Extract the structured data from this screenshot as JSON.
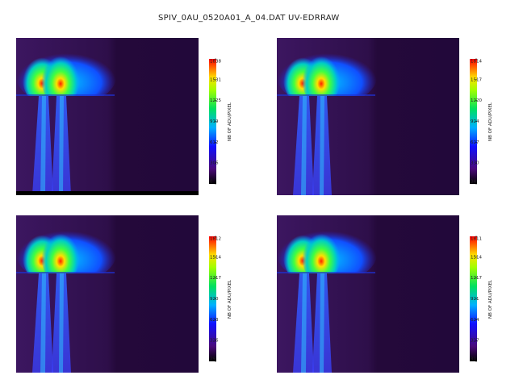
{
  "header": {
    "file": "SPIV_0AU_0520A01_A_04.DAT",
    "mode": "UV-EDRRAW"
  },
  "chart_data": [
    {
      "type": "heatmap",
      "colorbar_label": "NB OF ADU/PIXEL",
      "clim": [
        0,
        1838
      ],
      "cticks": [
        0,
        306,
        612,
        919,
        1225,
        1531,
        1838
      ]
    },
    {
      "type": "heatmap",
      "colorbar_label": "NB OF ADU/PIXEL",
      "clim": [
        34,
        1814
      ],
      "cticks": [
        34,
        330,
        627,
        924,
        1220,
        1517,
        1814
      ]
    },
    {
      "type": "heatmap",
      "colorbar_label": "NB OF ADU/PIXEL",
      "clim": [
        29,
        1812
      ],
      "cticks": [
        29,
        326,
        623,
        920,
        1217,
        1514,
        1812
      ]
    },
    {
      "type": "heatmap",
      "colorbar_label": "NB OF ADU/PIXEL",
      "clim": [
        31,
        1811
      ],
      "cticks": [
        31,
        327,
        624,
        921,
        1217,
        1514,
        1811
      ]
    }
  ]
}
